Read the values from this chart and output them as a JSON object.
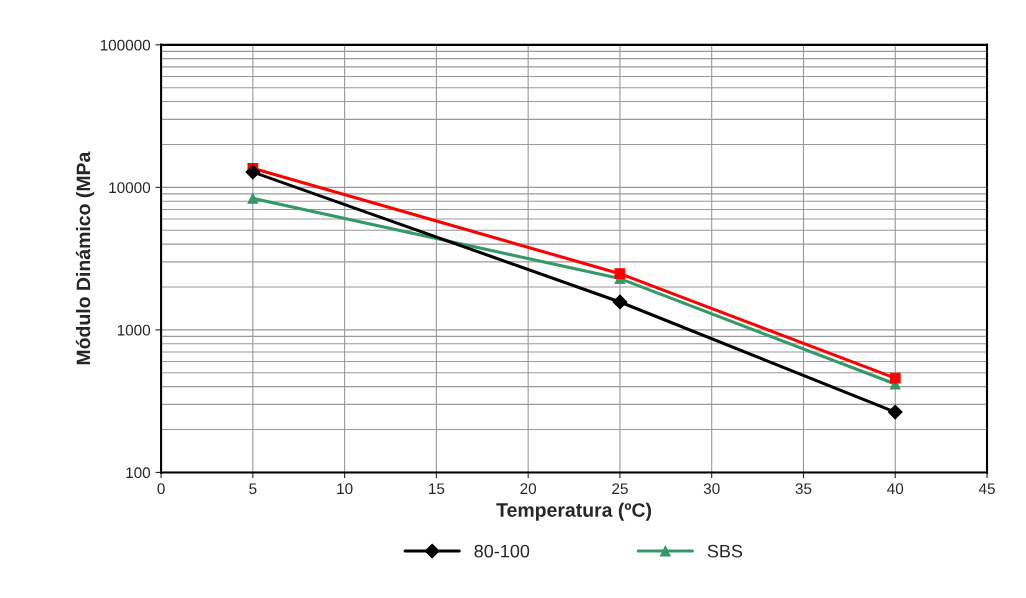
{
  "chart_data": {
    "type": "line",
    "xlabel": "Temperatura (ºC)",
    "ylabel": "Módulo Dinámico (MPa",
    "log": "y",
    "xlim": [
      0,
      45
    ],
    "xticks": [
      0,
      5,
      10,
      15,
      20,
      25,
      30,
      35,
      40,
      45
    ],
    "ylim": [
      100,
      100000
    ],
    "yticks": [
      100,
      1000,
      10000,
      100000
    ],
    "grid": true,
    "legend": "bottom",
    "series": [
      {
        "name": "80-100",
        "color": "#000000",
        "marker": "diamond",
        "x": [
          5,
          25,
          40
        ],
        "values": [
          12800,
          1570,
          265
        ]
      },
      {
        "color": "#ff0000",
        "marker": "square",
        "x": [
          5,
          25,
          40
        ],
        "values": [
          13600,
          2480,
          459
        ]
      },
      {
        "name": "SBS",
        "color": "#339966",
        "marker": "triangle",
        "x": [
          5,
          25,
          40
        ],
        "values": [
          8370,
          2290,
          417
        ]
      }
    ]
  }
}
